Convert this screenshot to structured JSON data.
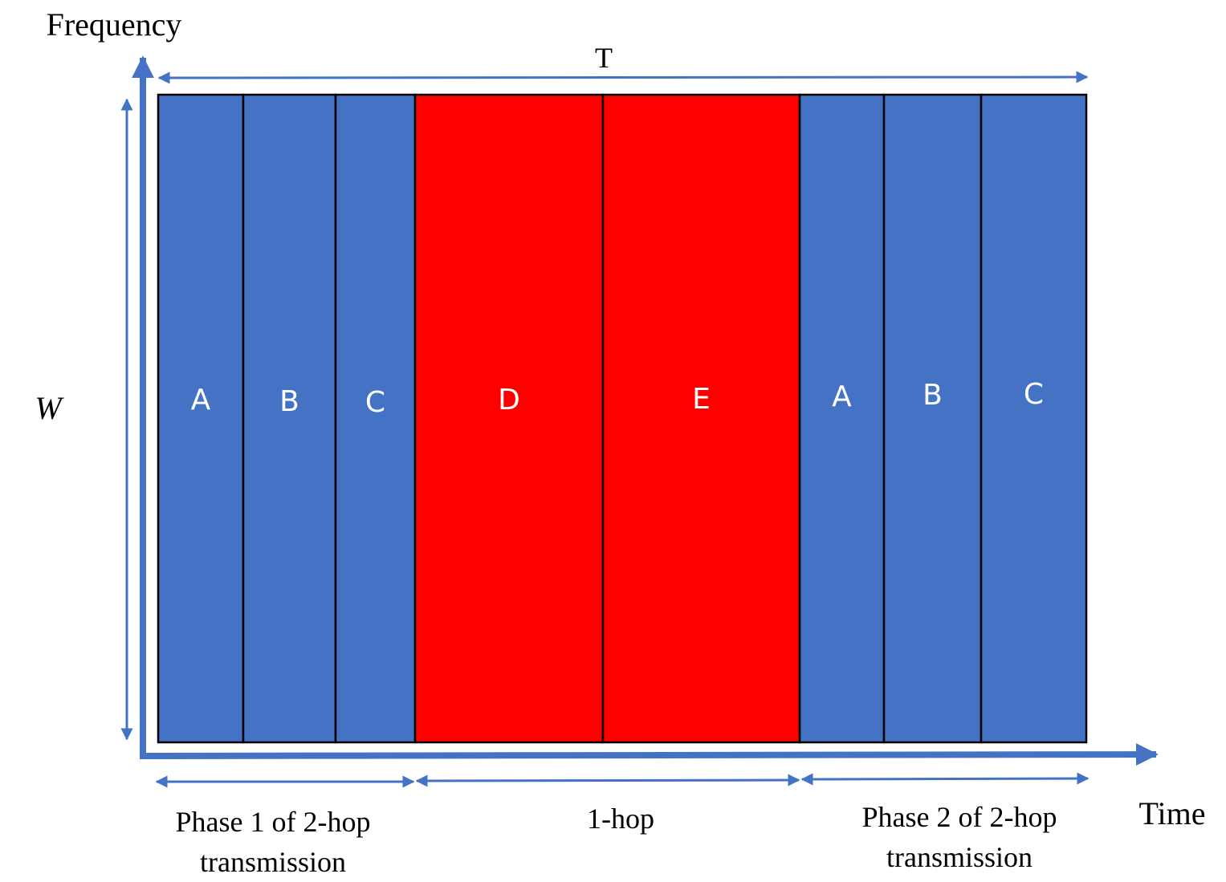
{
  "axes": {
    "y_label": "Frequency",
    "x_label": "Time",
    "bandwidth_label": "W",
    "duration_label": "T"
  },
  "colors": {
    "two_hop": "#4472C4",
    "one_hop": "#FF0000",
    "axis": "#4472C4"
  },
  "blocks": [
    {
      "label": "A",
      "phase": "two_hop"
    },
    {
      "label": "B",
      "phase": "two_hop"
    },
    {
      "label": "C",
      "phase": "two_hop"
    },
    {
      "label": "D",
      "phase": "one_hop"
    },
    {
      "label": "E",
      "phase": "one_hop"
    },
    {
      "label": "A",
      "phase": "two_hop"
    },
    {
      "label": "B",
      "phase": "two_hop"
    },
    {
      "label": "C",
      "phase": "two_hop"
    }
  ],
  "phases": [
    {
      "line1": "Phase 1 of 2-hop",
      "line2": "transmission"
    },
    {
      "line1": "1-hop",
      "line2": ""
    },
    {
      "line1": "Phase 2 of 2-hop",
      "line2": "transmission"
    }
  ]
}
